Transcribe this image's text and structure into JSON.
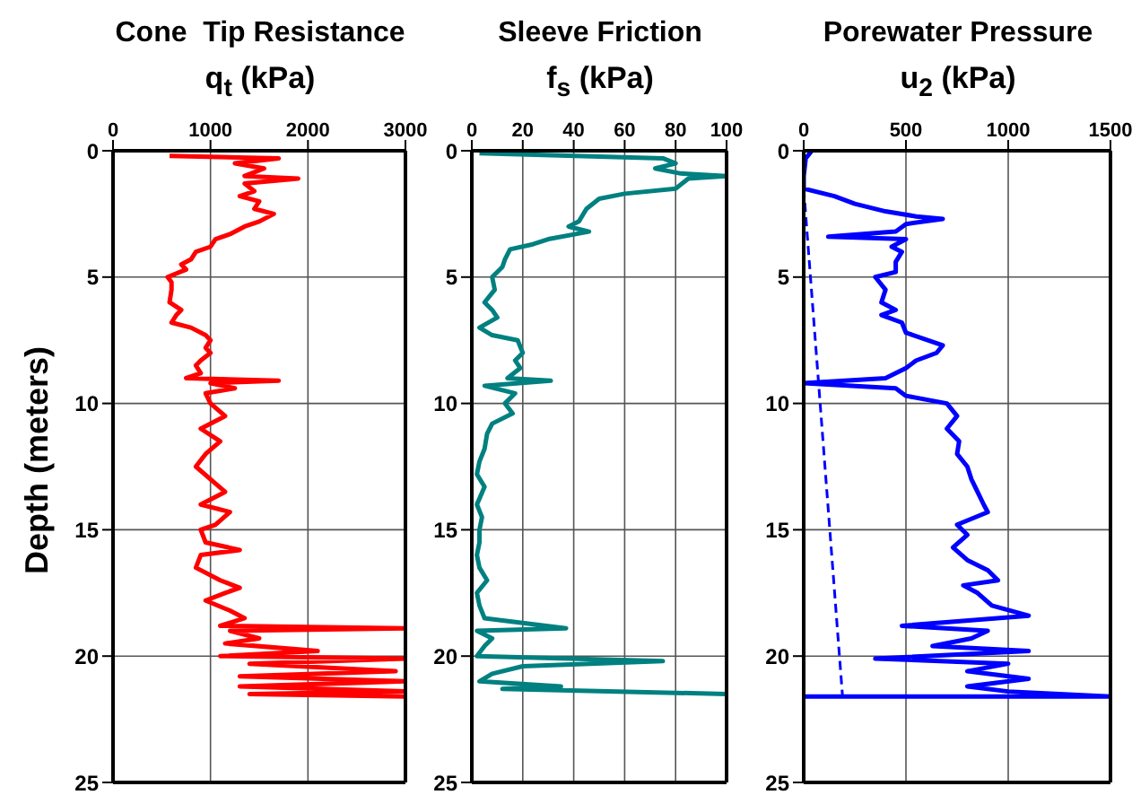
{
  "chart_data": [
    {
      "type": "line",
      "title": "Cone  Tip Resistance",
      "xlabel": "q$_{t}$ (kPa)",
      "ylabel": "Depth (meters)",
      "xlim": [
        0,
        3000
      ],
      "xticks": [
        0,
        1000,
        2000,
        3000
      ],
      "ylim": [
        25,
        0
      ],
      "yticks": [
        0,
        5,
        10,
        15,
        20,
        25
      ],
      "grid": true,
      "marker": "none",
      "series": [
        {
          "color": "#ff0000",
          "x": [
            580,
            1700,
            1250,
            1550,
            1350,
            1900,
            1350,
            1450,
            1300,
            1500,
            1450,
            1650,
            1500,
            1350,
            1200,
            1050,
            1000,
            850,
            800,
            700,
            750,
            560,
            600,
            600,
            580,
            700,
            650,
            600,
            800,
            950,
            1000,
            950,
            1000,
            900,
            850,
            900,
            750,
            1700,
            1000,
            1250,
            950,
            1000,
            1150,
            900,
            1100,
            950,
            850,
            1000,
            1150,
            900,
            1200,
            1050,
            900,
            950,
            1300,
            900,
            850,
            1100,
            1300,
            1150,
            950,
            1200,
            1350,
            1100,
            3000,
            1200,
            1500,
            1150,
            2100,
            1100,
            3000,
            1400,
            2900,
            1300,
            3000,
            1300,
            3000,
            1400,
            3000
          ],
          "values": [
            0.2,
            0.3,
            0.5,
            0.7,
            1.0,
            1.1,
            1.3,
            1.6,
            1.8,
            2.0,
            2.3,
            2.5,
            2.8,
            3.0,
            3.3,
            3.5,
            3.8,
            4.0,
            4.3,
            4.5,
            4.7,
            5.0,
            5.2,
            5.5,
            6.0,
            6.3,
            6.5,
            6.8,
            7.0,
            7.3,
            7.5,
            7.8,
            8.0,
            8.3,
            8.5,
            8.8,
            9.0,
            9.1,
            9.2,
            9.4,
            9.6,
            10,
            10.5,
            11,
            11.5,
            12,
            12.5,
            13,
            13.5,
            14,
            14.3,
            14.8,
            15,
            15.5,
            15.8,
            16,
            16.5,
            17,
            17.3,
            17.5,
            17.8,
            18.2,
            18.5,
            18.8,
            18.9,
            19.0,
            19.3,
            19.5,
            19.8,
            20.0,
            20.1,
            20.3,
            20.6,
            20.8,
            21.0,
            21.2,
            21.4,
            21.5,
            21.6
          ]
        }
      ]
    },
    {
      "type": "line",
      "title": "Sleeve Friction",
      "xlabel": "f$_{s}$ (kPa)",
      "xlim": [
        0,
        100
      ],
      "xticks": [
        0,
        20,
        40,
        60,
        80,
        100
      ],
      "ylim": [
        25,
        0
      ],
      "yticks": [
        0,
        5,
        10,
        15,
        20,
        25
      ],
      "grid": true,
      "marker": "none",
      "series": [
        {
          "color": "#008080",
          "x": [
            3,
            75,
            80,
            72,
            82,
            100,
            85,
            80,
            60,
            50,
            45,
            42,
            38,
            46,
            30,
            24,
            15,
            13,
            12,
            8,
            9,
            5,
            8,
            10,
            3,
            8,
            18,
            20,
            17,
            19,
            14,
            31,
            5,
            17,
            13,
            16,
            8,
            6,
            5,
            3,
            2,
            5,
            2,
            4,
            3,
            3,
            2,
            3,
            6,
            2,
            3,
            5,
            37,
            2,
            8,
            5,
            2,
            75,
            20,
            8,
            3,
            35,
            12,
            100
          ],
          "values": [
            0.1,
            0.3,
            0.5,
            0.7,
            0.9,
            1.0,
            1.1,
            1.5,
            1.7,
            1.9,
            2.3,
            2.8,
            3.0,
            3.2,
            3.5,
            3.7,
            3.9,
            4.3,
            4.6,
            5.0,
            5.5,
            6.0,
            6.3,
            6.6,
            7.0,
            7.3,
            7.5,
            8.0,
            8.3,
            8.6,
            9.0,
            9.1,
            9.3,
            9.6,
            10,
            10.4,
            10.8,
            11.2,
            11.8,
            12.3,
            12.8,
            13.3,
            14,
            14.5,
            15,
            15.5,
            16,
            16.5,
            17,
            17.5,
            18,
            18.5,
            18.9,
            19.0,
            19.3,
            19.6,
            20.0,
            20.2,
            20.4,
            20.7,
            21.0,
            21.2,
            21.3,
            21.5
          ]
        }
      ]
    },
    {
      "type": "line",
      "title": "Porewater Pressure",
      "xlabel": "u$_{2}$ (kPa)",
      "xlim": [
        0,
        1500
      ],
      "xticks": [
        0,
        500,
        1000,
        1500
      ],
      "ylim": [
        25,
        0
      ],
      "yticks": [
        0,
        5,
        10,
        15,
        20,
        25
      ],
      "grid": true,
      "marker": "none",
      "series": [
        {
          "color": "#0000ff",
          "line_style": "solid",
          "x": [
            40,
            10,
            0,
            0,
            150,
            250,
            400,
            550,
            680,
            500,
            450,
            120,
            500,
            430,
            480,
            450,
            450,
            350,
            400,
            380,
            450,
            380,
            480,
            500,
            680,
            650,
            550,
            500,
            400,
            0,
            450,
            500,
            700,
            750,
            700,
            760,
            750,
            800,
            820,
            850,
            880,
            900,
            750,
            800,
            730,
            800,
            900,
            950,
            780,
            850,
            920,
            1100,
            480,
            900,
            820,
            630,
            1100,
            350,
            1000,
            800,
            1100,
            800,
            1000,
            1500,
            0
          ],
          "values": [
            0.0,
            0.3,
            1.0,
            1.5,
            1.8,
            2.1,
            2.4,
            2.6,
            2.7,
            2.9,
            3.2,
            3.4,
            3.5,
            3.8,
            4.0,
            4.4,
            4.8,
            5.0,
            5.5,
            6.0,
            6.3,
            6.5,
            6.8,
            7.2,
            7.7,
            8.0,
            8.3,
            8.6,
            9.0,
            9.2,
            9.4,
            9.7,
            10,
            10.5,
            11,
            11.5,
            12,
            12.5,
            13,
            13.5,
            14,
            14.3,
            14.8,
            15.2,
            15.7,
            16.2,
            16.6,
            17.0,
            17.2,
            17.5,
            18.0,
            18.4,
            18.8,
            19.0,
            19.3,
            19.6,
            19.8,
            20.1,
            20.3,
            20.6,
            20.9,
            21.2,
            21.4,
            21.6,
            21.6
          ]
        },
        {
          "color": "#0000ff",
          "line_style": "dashed",
          "x": [
            0,
            190
          ],
          "values": [
            1.5,
            21.6
          ]
        }
      ]
    }
  ]
}
